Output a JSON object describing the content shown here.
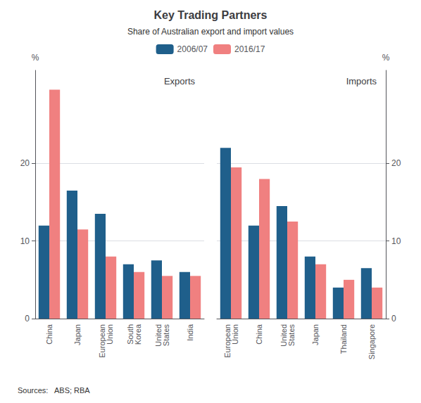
{
  "title": "Key Trading Partners",
  "subtitle": "Share of Australian export and import values",
  "source": "Sources:   ABS; RBA",
  "chart_data": [
    {
      "type": "bar",
      "title": "Exports",
      "ylabel": "%",
      "categories": [
        "China",
        "Japan",
        "European\nUnion",
        "South\nKorea",
        "United\nStates",
        "India"
      ],
      "series": [
        {
          "name": "2006/07",
          "color": "#1f5f8b",
          "values": [
            12.0,
            16.5,
            13.5,
            7.0,
            7.5,
            6.0
          ]
        },
        {
          "name": "2016/17",
          "color": "#f08080",
          "values": [
            29.5,
            11.5,
            8.0,
            6.0,
            5.5,
            5.5
          ]
        }
      ],
      "ylim": [
        0,
        32
      ],
      "yticks": [
        0,
        10,
        20
      ],
      "grid": true,
      "legend": "top"
    },
    {
      "type": "bar",
      "title": "Imports",
      "ylabel": "%",
      "categories": [
        "European\nUnion",
        "China",
        "United\nStates",
        "Japan",
        "Thailand",
        "Singapore"
      ],
      "series": [
        {
          "name": "2006/07",
          "color": "#1f5f8b",
          "values": [
            22.0,
            12.0,
            14.5,
            8.0,
            4.0,
            6.5
          ]
        },
        {
          "name": "2016/17",
          "color": "#f08080",
          "values": [
            19.5,
            18.0,
            12.5,
            7.0,
            5.0,
            4.0
          ]
        }
      ],
      "ylim": [
        0,
        32
      ],
      "yticks": [
        0,
        10,
        20
      ],
      "grid": true
    }
  ]
}
